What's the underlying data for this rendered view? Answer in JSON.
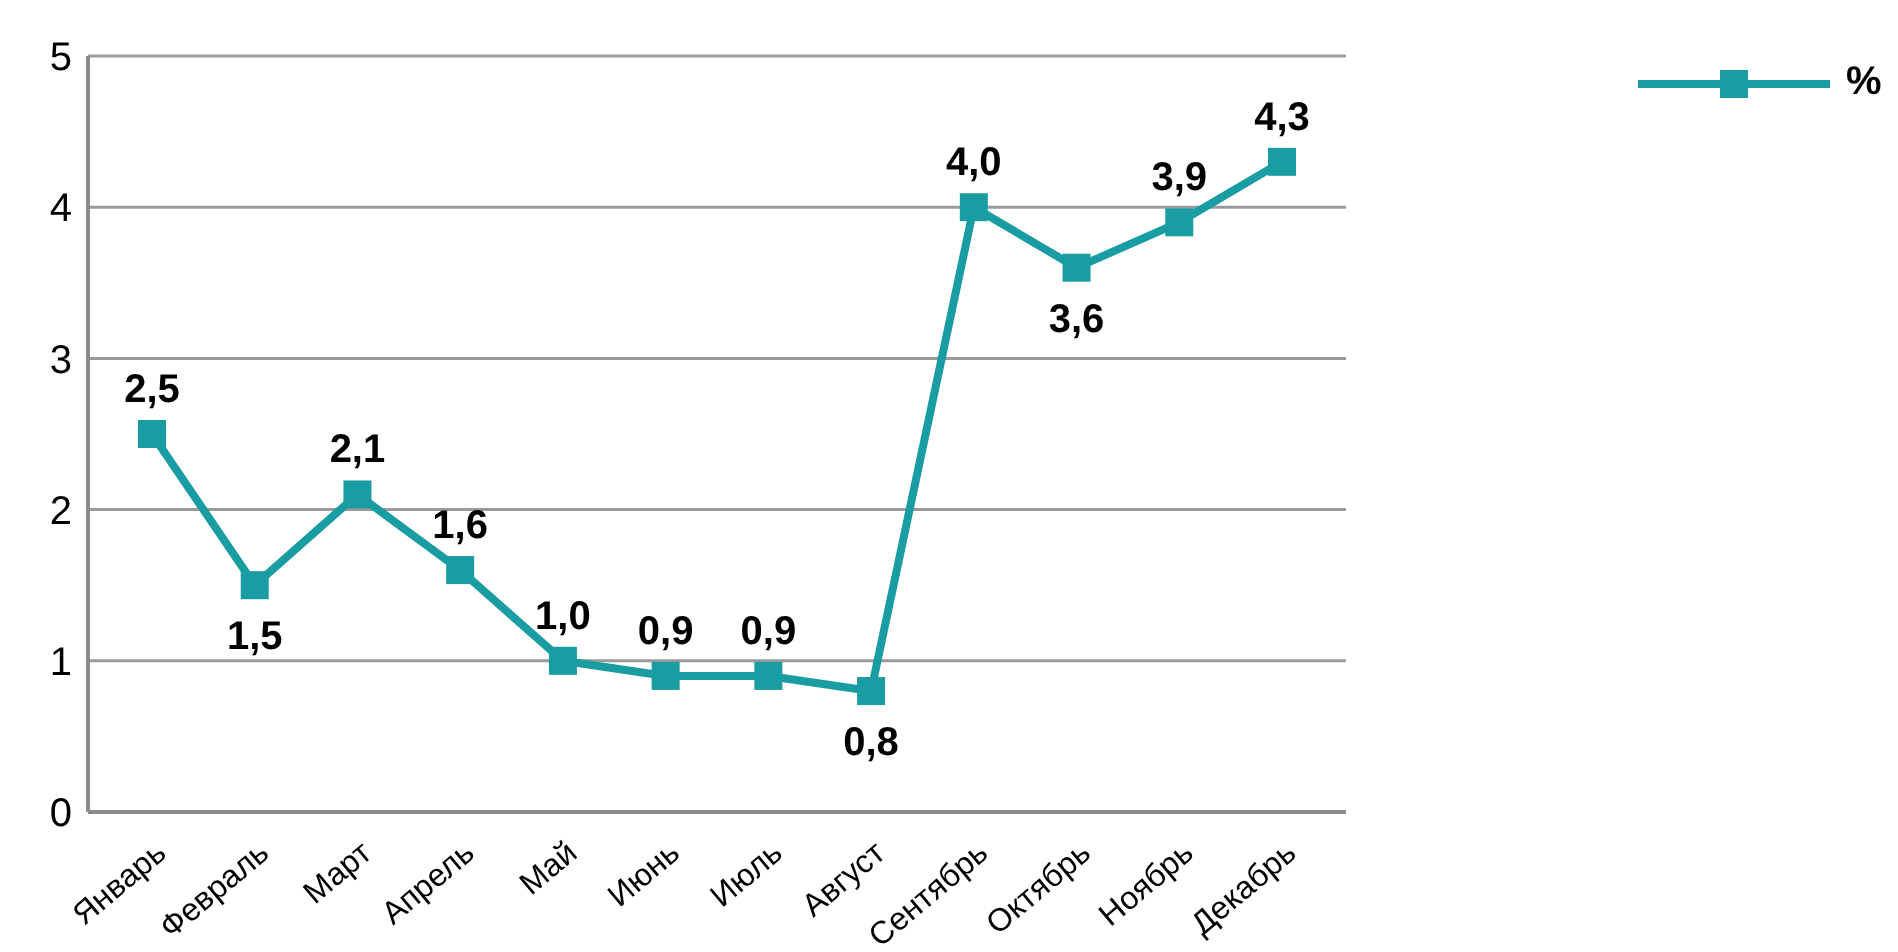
{
  "chart_data": {
    "type": "line",
    "categories": [
      "Январь",
      "Февраль",
      "Март",
      "Апрель",
      "Май",
      "Июнь",
      "Июль",
      "Август",
      "Сентябрь",
      "Октябрь",
      "Ноябрь",
      "Декабрь"
    ],
    "series": [
      {
        "name": "%",
        "color": "#1a9ca3",
        "values": [
          2.5,
          1.5,
          2.1,
          1.6,
          1.0,
          0.9,
          0.9,
          0.8,
          4.0,
          3.6,
          3.9,
          4.3
        ],
        "value_labels": [
          "2,5",
          "1,5",
          "2,1",
          "1,6",
          "1,0",
          "0,9",
          "0,9",
          "0,8",
          "4,0",
          "3,6",
          "3,9",
          "4,3"
        ]
      }
    ],
    "ylim": [
      0,
      5
    ],
    "yticks": [
      0,
      1,
      2,
      3,
      4,
      5
    ],
    "grid": "y",
    "legend": "top right",
    "marker": "square",
    "line_style": "solid"
  }
}
